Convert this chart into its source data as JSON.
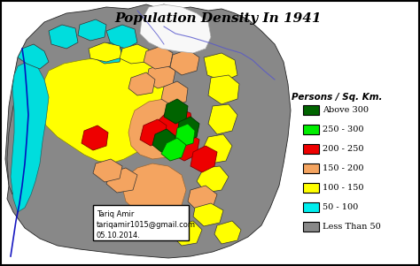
{
  "title": "Population Density In 1941",
  "title_style": "italic",
  "title_fontsize": 11,
  "legend_title": "Persons / Sq. Km.",
  "legend_entries": [
    {
      "label": "Above 300",
      "color": "#006400"
    },
    {
      "label": "250 - 300",
      "color": "#00ee00"
    },
    {
      "label": "200 - 250",
      "color": "#ee0000"
    },
    {
      "label": "150 - 200",
      "color": "#f4a460"
    },
    {
      "label": "100 - 150",
      "color": "#ffff00"
    },
    {
      "label": "50 - 100",
      "color": "#00eeee"
    },
    {
      "label": "Less Than 50",
      "color": "#888888"
    }
  ],
  "textbox_lines": [
    "Tariq Amir",
    "tariqamir1015@gmail.com",
    "05.10.2014."
  ],
  "textbox_fontsize": 6,
  "bg_color": "#ffffff",
  "border_color": "#000000",
  "figsize": [
    4.74,
    3.01
  ],
  "dpi": 100,
  "legend_title_fontsize": 7.5,
  "legend_label_fontsize": 7,
  "map_bg": "#ffffff"
}
